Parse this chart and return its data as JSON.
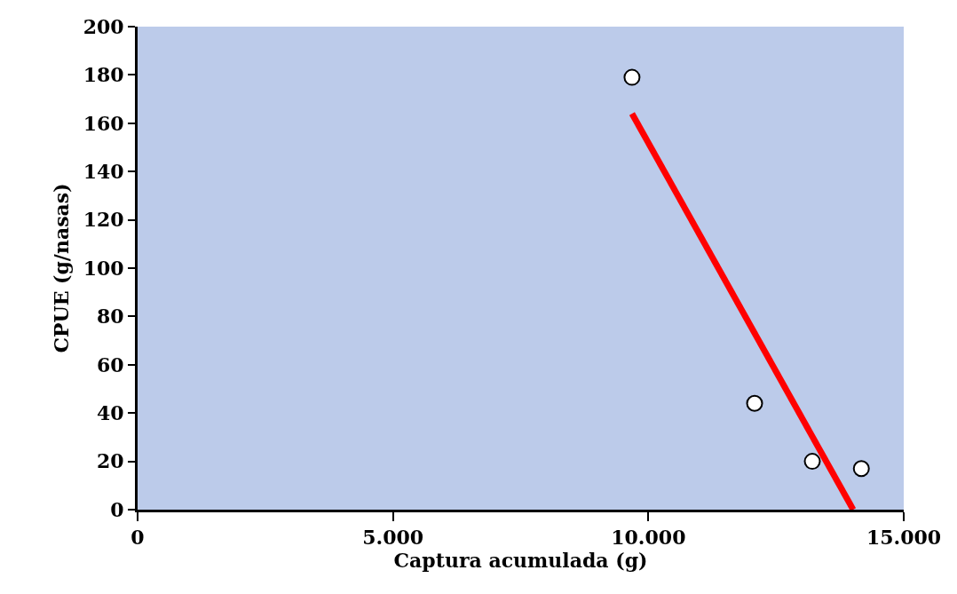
{
  "chart_data": {
    "type": "scatter",
    "xlabel": "Captura acumulada (g)",
    "ylabel": "CPUE (g/nasas)",
    "xlim": [
      0,
      15000
    ],
    "ylim": [
      0,
      200
    ],
    "xticks": [
      0,
      {
        "value": 5000,
        "label": "5.000"
      },
      {
        "value": 10000,
        "label": "10.000"
      },
      {
        "value": 15000,
        "label": "15.000"
      }
    ],
    "yticks": [
      0,
      20,
      40,
      60,
      80,
      100,
      120,
      140,
      160,
      180,
      200
    ],
    "grid": false,
    "legend": false,
    "series": [
      {
        "color": "#ffffff",
        "marker": "circle",
        "x": [
          9680,
          12080,
          13210,
          14170
        ],
        "values": [
          179,
          44,
          20,
          17
        ]
      },
      {
        "type": "line",
        "color": "#ff0000",
        "marker": "none",
        "line_style": "solid",
        "x": [
          9680,
          14010
        ],
        "values": [
          164,
          0
        ]
      }
    ]
  }
}
